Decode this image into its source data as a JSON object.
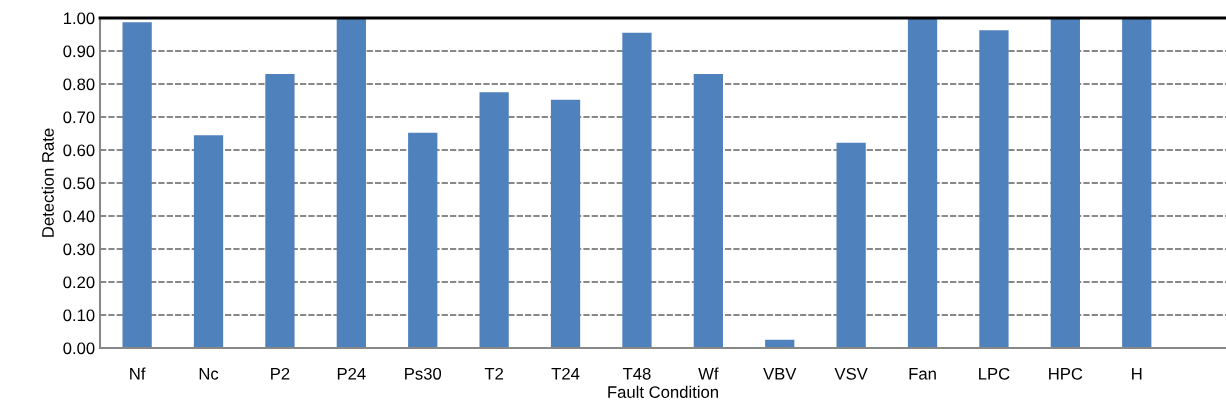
{
  "chart_data": {
    "type": "bar",
    "xlabel": "Fault Condition",
    "ylabel": "Detection Rate",
    "categories": [
      "Nf",
      "Nc",
      "P2",
      "P24",
      "Ps30",
      "T2",
      "T24",
      "T48",
      "Wf",
      "VBV",
      "VSV",
      "Fan",
      "LPC",
      "HPC",
      "H"
    ],
    "values": [
      0.987,
      0.645,
      0.83,
      1.0,
      0.652,
      0.775,
      0.752,
      0.955,
      0.83,
      0.025,
      0.622,
      1.0,
      0.963,
      1.0,
      1.0
    ],
    "color": "#4f81bd",
    "ylim": [
      0,
      1.0
    ],
    "yticks": [
      {
        "value": 0,
        "label": "0.00"
      },
      {
        "value": 0.1,
        "label": "0.10"
      },
      {
        "value": 0.2,
        "label": "0.20"
      },
      {
        "value": 0.3,
        "label": "0.30"
      },
      {
        "value": 0.4,
        "label": "0.40"
      },
      {
        "value": 0.5,
        "label": "0.50"
      },
      {
        "value": 0.6,
        "label": "0.60"
      },
      {
        "value": 0.7,
        "label": "0.70"
      },
      {
        "value": 0.8,
        "label": "0.80"
      },
      {
        "value": 0.9,
        "label": "0.90"
      },
      {
        "value": 1.0,
        "label": "1.00"
      }
    ],
    "grid": "y"
  }
}
